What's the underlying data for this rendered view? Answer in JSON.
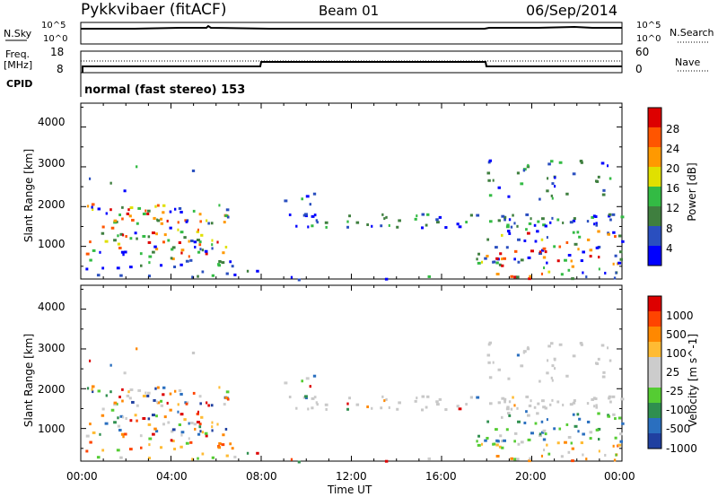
{
  "header": {
    "station": "Pykkvibaer (fitACF)",
    "beam": "Beam 01",
    "date": "06/Sep/2014"
  },
  "noise_panel": {
    "label": "N.Sky",
    "left_ticks": [
      "10^5",
      "10^0"
    ],
    "right_ticks": [
      "10^5",
      "10^0"
    ],
    "right_label": "N.Search"
  },
  "freq_panel": {
    "label_line1": "Freq.",
    "label_line2": "[MHz]",
    "left_ticks": [
      "18",
      "8"
    ],
    "right_ticks": [
      "60",
      "0"
    ],
    "right_label": "Nave"
  },
  "cpid_panel": {
    "label": "CPID",
    "mode_text": "normal (fast stereo) 153"
  },
  "colors": {
    "power_scale": [
      "#0000ff",
      "#2a4fbf",
      "#3f7f3f",
      "#33bb44",
      "#e0e000",
      "#ff9900",
      "#ff5500",
      "#dd0000"
    ],
    "velocity_scale": [
      "#dd0000",
      "#ff4400",
      "#ff8800",
      "#ffbb33",
      "#cccccc",
      "#cccccc",
      "#55cc33",
      "#2f8f4f",
      "#2a6fbf",
      "#2040a0"
    ]
  },
  "chart_data": [
    {
      "type": "heatmap",
      "title": "",
      "xlabel": "Time UT",
      "ylabel": "Slant Range [km]",
      "colorbar_label": "Power [dB]",
      "x_ticks": [
        "00:00",
        "04:00",
        "08:00",
        "12:00",
        "16:00",
        "20:00",
        "00:00"
      ],
      "y_ticks": [
        "1000",
        "2000",
        "3000",
        "4000"
      ],
      "xlim_hours": [
        0,
        24
      ],
      "ylim_km": [
        180,
        4600
      ],
      "colorbar_ticks": [
        "4",
        "8",
        "12",
        "16",
        "20",
        "24",
        "28"
      ],
      "colorbar_range": [
        0,
        32
      ]
    },
    {
      "type": "heatmap",
      "title": "",
      "xlabel": "Time UT",
      "ylabel": "Slant Range [km]",
      "colorbar_label": "Velocity [m s^-1]",
      "x_ticks": [
        "00:00",
        "04:00",
        "08:00",
        "12:00",
        "16:00",
        "20:00",
        "00:00"
      ],
      "y_ticks": [
        "1000",
        "2000",
        "3000",
        "4000"
      ],
      "xlim_hours": [
        0,
        24
      ],
      "ylim_km": [
        180,
        4600
      ],
      "colorbar_ticks": [
        "1000",
        "500",
        "100",
        "25",
        "-25",
        "-100",
        "-500",
        "-1000"
      ]
    }
  ]
}
